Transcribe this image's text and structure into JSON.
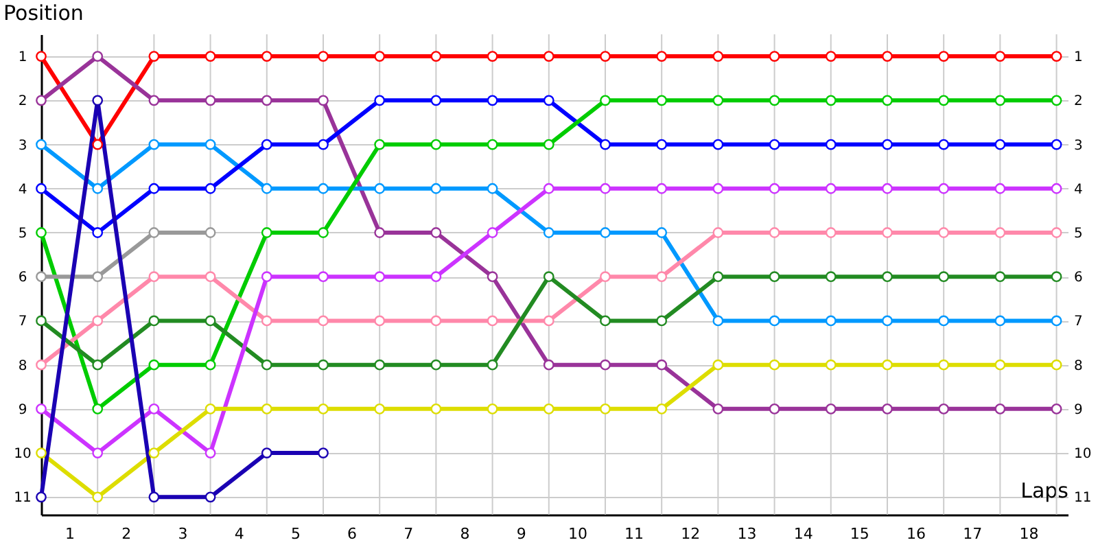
{
  "chart_data": {
    "type": "line",
    "xlabel": "Laps",
    "ylabel": "Position",
    "x": [
      0,
      1,
      2,
      3,
      4,
      5,
      6,
      7,
      8,
      9,
      10,
      11,
      12,
      13,
      14,
      15,
      16,
      17,
      18
    ],
    "series": [
      {
        "color": "#ff0000",
        "values": [
          1,
          3,
          1,
          1,
          1,
          1,
          1,
          1,
          1,
          1,
          1,
          1,
          1,
          1,
          1,
          1,
          1,
          1,
          1
        ]
      },
      {
        "color": "#993399",
        "values": [
          2,
          1,
          2,
          2,
          2,
          2,
          5,
          5,
          6,
          8,
          8,
          8,
          9,
          9,
          9,
          9,
          9,
          9,
          9
        ]
      },
      {
        "color": "#0099ff",
        "values": [
          3,
          4,
          3,
          3,
          4,
          4,
          4,
          4,
          4,
          5,
          5,
          5,
          7,
          7,
          7,
          7,
          7,
          7,
          7
        ]
      },
      {
        "color": "#0000ff",
        "values": [
          4,
          5,
          4,
          4,
          3,
          3,
          2,
          2,
          2,
          2,
          3,
          3,
          3,
          3,
          3,
          3,
          3,
          3,
          3
        ]
      },
      {
        "color": "#00cc00",
        "values": [
          5,
          9,
          8,
          8,
          5,
          5,
          3,
          3,
          3,
          3,
          2,
          2,
          2,
          2,
          2,
          2,
          2,
          2,
          2
        ]
      },
      {
        "color": "#999999",
        "values": [
          6,
          6,
          5,
          5,
          null,
          null,
          null,
          null,
          null,
          null,
          null,
          null,
          null,
          null,
          null,
          null,
          null,
          null,
          null
        ]
      },
      {
        "color": "#ff88aa",
        "values": [
          8,
          7,
          6,
          6,
          7,
          7,
          7,
          7,
          7,
          7,
          6,
          6,
          5,
          5,
          5,
          5,
          5,
          5,
          5
        ]
      },
      {
        "color": "#228b22",
        "values": [
          7,
          8,
          7,
          7,
          8,
          8,
          8,
          8,
          8,
          6,
          7,
          7,
          6,
          6,
          6,
          6,
          6,
          6,
          6
        ]
      },
      {
        "color": "#cc33ff",
        "values": [
          9,
          10,
          9,
          10,
          6,
          6,
          6,
          6,
          5,
          4,
          4,
          4,
          4,
          4,
          4,
          4,
          4,
          4,
          4
        ]
      },
      {
        "color": "#dddd00",
        "values": [
          10,
          11,
          10,
          9,
          9,
          9,
          9,
          9,
          9,
          9,
          9,
          9,
          8,
          8,
          8,
          8,
          8,
          8,
          8
        ]
      },
      {
        "color": "#1a00b3",
        "values": [
          11,
          2,
          11,
          11,
          10,
          10,
          null,
          null,
          null,
          null,
          null,
          null,
          null,
          null,
          null,
          null,
          null,
          null,
          null
        ]
      }
    ],
    "xlim": [
      0,
      18.2
    ],
    "xticks": [
      {
        "value": 1,
        "label": null
      },
      {
        "value": 2,
        "label": null
      },
      {
        "value": 3,
        "label": null
      },
      {
        "value": 4,
        "label": null
      },
      {
        "value": 5,
        "label": null
      },
      {
        "value": 6,
        "label": null
      },
      {
        "value": 7,
        "label": null
      },
      {
        "value": 8,
        "label": null
      },
      {
        "value": 9,
        "label": null
      },
      {
        "value": 10,
        "label": null
      },
      {
        "value": 11,
        "label": null
      },
      {
        "value": 12,
        "label": null
      },
      {
        "value": 13,
        "label": null
      },
      {
        "value": 14,
        "label": null
      },
      {
        "value": 15,
        "label": null
      },
      {
        "value": 16,
        "label": null
      },
      {
        "value": 17,
        "label": null
      },
      {
        "value": 18,
        "label": null
      },
      {
        "value": 0.5,
        "label": "1"
      },
      {
        "value": 1.5,
        "label": "2"
      },
      {
        "value": 2.5,
        "label": "3"
      },
      {
        "value": 3.5,
        "label": "4"
      },
      {
        "value": 4.5,
        "label": "5"
      },
      {
        "value": 5.5,
        "label": "6"
      },
      {
        "value": 6.5,
        "label": "7"
      },
      {
        "value": 7.5,
        "label": "8"
      },
      {
        "value": 8.5,
        "label": "9"
      },
      {
        "value": 9.5,
        "label": "10"
      },
      {
        "value": 10.5,
        "label": "11"
      },
      {
        "value": 11.5,
        "label": "12"
      },
      {
        "value": 12.5,
        "label": "13"
      },
      {
        "value": 13.5,
        "label": "14"
      },
      {
        "value": 14.5,
        "label": "15"
      },
      {
        "value": 15.5,
        "label": "16"
      },
      {
        "value": 16.5,
        "label": "17"
      },
      {
        "value": 17.5,
        "label": "18"
      }
    ],
    "ylim": [
      11.4,
      0.5
    ],
    "yticks": [
      1,
      2,
      3,
      4,
      5,
      6,
      7,
      8,
      9,
      10,
      11
    ],
    "y2lim": [
      11.4,
      0.5
    ],
    "y2ticks": [
      1,
      2,
      3,
      4,
      5,
      6,
      7,
      8,
      9,
      10,
      11
    ],
    "grid": true,
    "marker": "circle",
    "line_style": "solid",
    "legend": false
  }
}
